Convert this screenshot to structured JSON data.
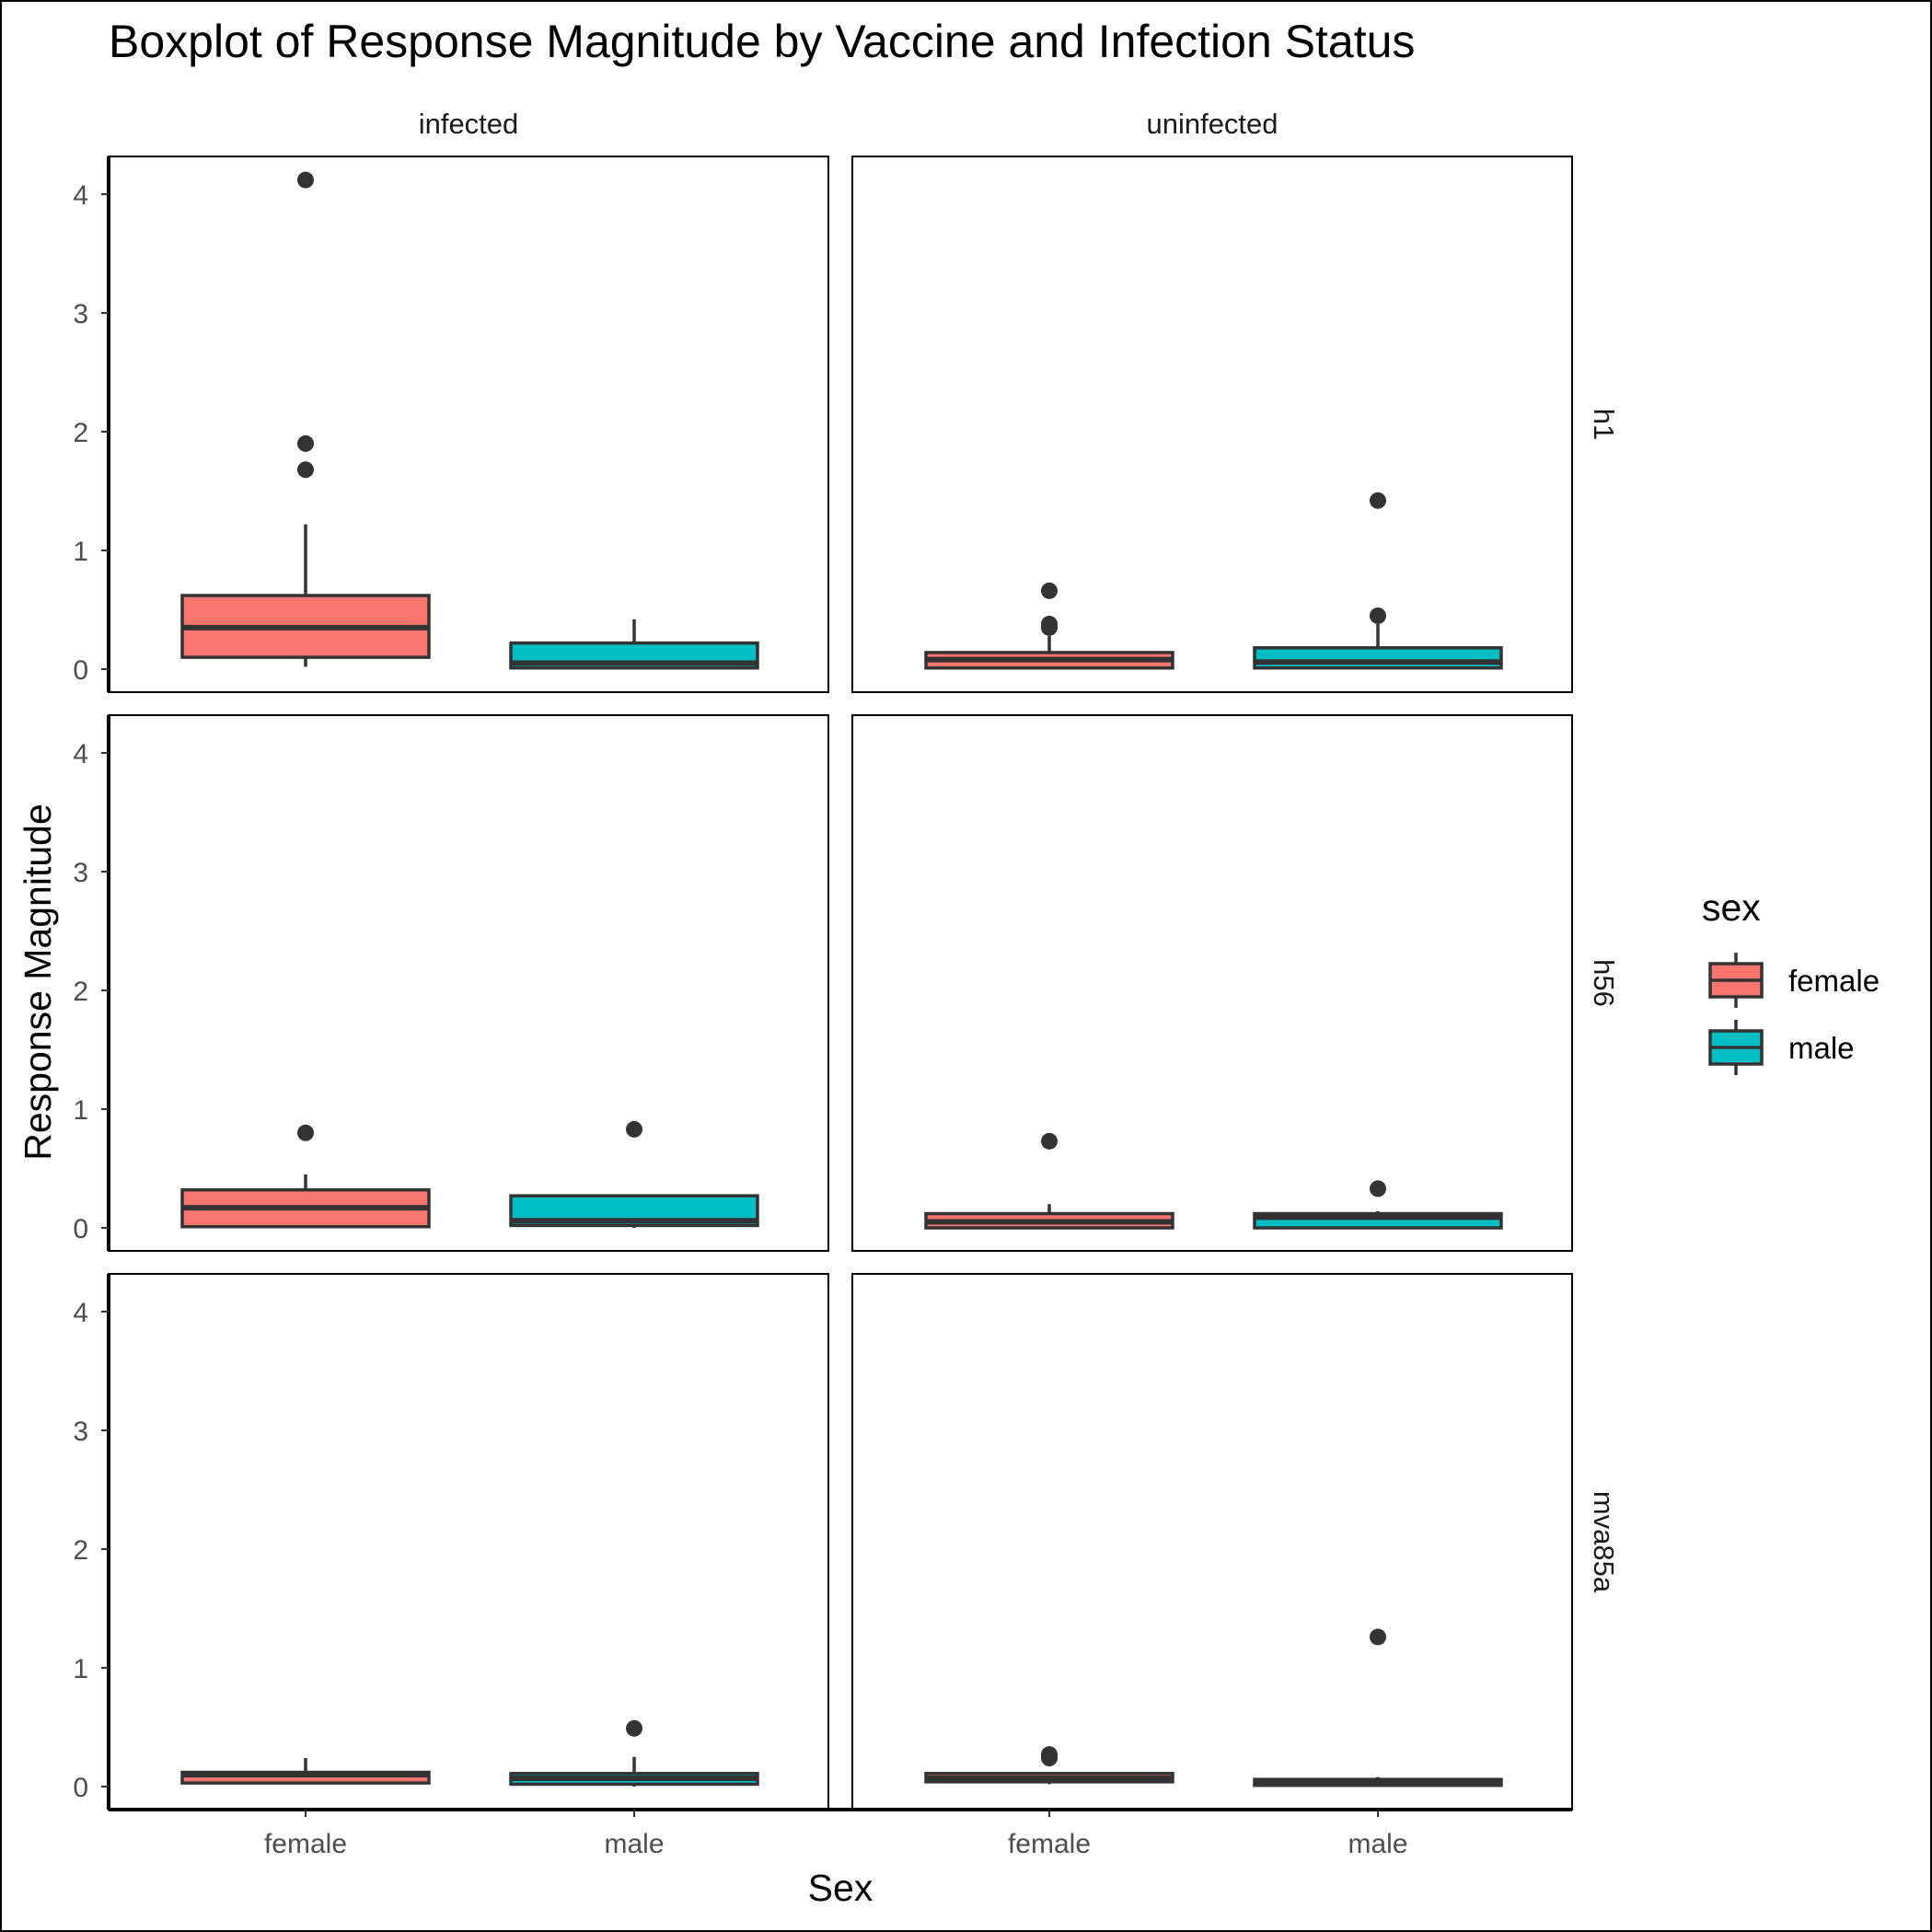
{
  "chart_data": {
    "type": "boxplot",
    "title": "Boxplot of Response Magnitude by Vaccine and Infection Status",
    "xlabel": "Sex",
    "ylabel": "Response Magnitude",
    "ylim": [
      -0.2,
      4.3
    ],
    "yticks": [
      0,
      1,
      2,
      3,
      4
    ],
    "categories": [
      "female",
      "male"
    ],
    "column_facets": [
      "infected",
      "uninfected"
    ],
    "row_facets": [
      "h1",
      "h56",
      "mva85a"
    ],
    "legend": {
      "title": "sex",
      "position": "right",
      "entries": [
        {
          "label": "female",
          "color": "#F8766D"
        },
        {
          "label": "male",
          "color": "#00BFC4"
        }
      ]
    },
    "grid": false,
    "box_outline_color": "#333333",
    "panels": [
      {
        "row": "h1",
        "col": "infected",
        "boxes": [
          {
            "category": "female",
            "min": 0.02,
            "q1": 0.1,
            "median": 0.35,
            "q3": 0.62,
            "max": 1.22,
            "outliers": [
              1.68,
              1.9,
              4.12
            ]
          },
          {
            "category": "male",
            "min": 0.0,
            "q1": 0.01,
            "median": 0.05,
            "q3": 0.22,
            "max": 0.42,
            "outliers": []
          }
        ]
      },
      {
        "row": "h1",
        "col": "uninfected",
        "boxes": [
          {
            "category": "female",
            "min": 0.0,
            "q1": 0.01,
            "median": 0.08,
            "q3": 0.14,
            "max": 0.28,
            "outliers": [
              0.35,
              0.38,
              0.66
            ]
          },
          {
            "category": "male",
            "min": 0.0,
            "q1": 0.01,
            "median": 0.06,
            "q3": 0.18,
            "max": 0.38,
            "outliers": [
              0.45,
              1.42
            ]
          }
        ]
      },
      {
        "row": "h56",
        "col": "infected",
        "boxes": [
          {
            "category": "female",
            "min": 0.0,
            "q1": 0.01,
            "median": 0.17,
            "q3": 0.32,
            "max": 0.45,
            "outliers": [
              0.8
            ]
          },
          {
            "category": "male",
            "min": 0.0,
            "q1": 0.02,
            "median": 0.06,
            "q3": 0.27,
            "max": 0.27,
            "outliers": [
              0.83
            ]
          }
        ]
      },
      {
        "row": "h56",
        "col": "uninfected",
        "boxes": [
          {
            "category": "female",
            "min": 0.0,
            "q1": 0.0,
            "median": 0.05,
            "q3": 0.12,
            "max": 0.2,
            "outliers": [
              0.73
            ]
          },
          {
            "category": "male",
            "min": 0.0,
            "q1": 0.0,
            "median": 0.09,
            "q3": 0.12,
            "max": 0.14,
            "outliers": [
              0.33
            ]
          }
        ]
      },
      {
        "row": "mva85a",
        "col": "infected",
        "boxes": [
          {
            "category": "female",
            "min": 0.02,
            "q1": 0.03,
            "median": 0.1,
            "q3": 0.12,
            "max": 0.24,
            "outliers": []
          },
          {
            "category": "male",
            "min": 0.0,
            "q1": 0.02,
            "median": 0.07,
            "q3": 0.11,
            "max": 0.25,
            "outliers": [
              0.49
            ]
          }
        ]
      },
      {
        "row": "mva85a",
        "col": "uninfected",
        "boxes": [
          {
            "category": "female",
            "min": 0.02,
            "q1": 0.04,
            "median": 0.07,
            "q3": 0.11,
            "max": 0.12,
            "outliers": [
              0.24,
              0.27
            ]
          },
          {
            "category": "male",
            "min": 0.0,
            "q1": 0.01,
            "median": 0.04,
            "q3": 0.06,
            "max": 0.08,
            "outliers": [
              1.26
            ]
          }
        ]
      }
    ]
  }
}
